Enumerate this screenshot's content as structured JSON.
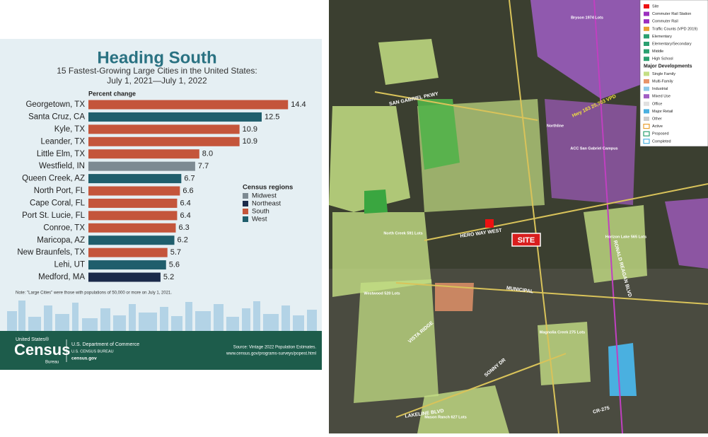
{
  "chart_data": {
    "type": "bar",
    "orientation": "horizontal",
    "title": "Heading South",
    "subtitle": [
      "15 Fastest-Growing Large Cities in the United States:",
      "July 1, 2021—July 1, 2022"
    ],
    "value_axis_label": "Percent change",
    "categories": [
      "Georgetown, TX",
      "Santa Cruz, CA",
      "Kyle, TX",
      "Leander, TX",
      "Little Elm, TX",
      "Westfield, IN",
      "Queen Creek, AZ",
      "North Port, FL",
      "Cape Coral, FL",
      "Port St. Lucie, FL",
      "Conroe, TX",
      "Maricopa, AZ",
      "New Braunfels, TX",
      "Lehi, UT",
      "Medford, MA"
    ],
    "values": [
      14.4,
      12.5,
      10.9,
      10.9,
      8.0,
      7.7,
      6.7,
      6.6,
      6.4,
      6.4,
      6.3,
      6.2,
      5.7,
      5.6,
      5.2
    ],
    "value_labels": [
      "14.4",
      "12.5",
      "10.9",
      "10.9",
      "8.0",
      "7.7",
      "6.7",
      "6.6",
      "6.4",
      "6.4",
      "6.3",
      "6.2",
      "5.7",
      "5.6",
      "5.2"
    ],
    "regions": [
      "South",
      "West",
      "South",
      "South",
      "South",
      "Midwest",
      "West",
      "South",
      "South",
      "South",
      "South",
      "West",
      "South",
      "West",
      "Northeast"
    ],
    "xlim": [
      0,
      15
    ],
    "legend_title": "Census regions",
    "legend": [
      {
        "name": "Midwest",
        "color": "#7d8a92"
      },
      {
        "name": "Northeast",
        "color": "#1b2a4a"
      },
      {
        "name": "South",
        "color": "#c4553b"
      },
      {
        "name": "West",
        "color": "#1f5e6c"
      }
    ],
    "note": "Note: \"Large Cities\" were those with populations of 50,000 or more on July 1, 2021.",
    "footer": {
      "logo_top": "United States®",
      "logo": "Census",
      "logo_sub": "Bureau",
      "dept": "U.S. Department of Commerce",
      "bureau": "U.S. CENSUS BUREAU",
      "site": "census.gov",
      "source": "Source: Vintage 2022 Population Estimates.",
      "source_url": "www.census.gov/programs-surveys/popest.html"
    }
  },
  "map": {
    "site_label": "SITE",
    "labels": [
      "SAN GABRIEL PKWY",
      "HERO WAY WEST",
      "Hwy 183  25,703 VPD",
      "MUNICIPAL",
      "VISTA RIDGE",
      "LAKELINE BLVD",
      "CR-275",
      "SONNY DR",
      "RONALD REAGAN BLVD",
      "Bryson 1974 Lots",
      "North Creek 591 Lots",
      "Westwood 520 Lots",
      "Mason Ranch 627 Lots",
      "Magnolia Creek 275 Lots",
      "Horizon Lake 565 Lots",
      "Northline",
      "ACC San Gabriel Campus"
    ],
    "legend": [
      "Site",
      "Commuter Rail Station",
      "Commuter Rail",
      "Traffic Counts (VPD 2019)",
      "Elementary",
      "Elementary/Secondary",
      "Middle",
      "High School",
      "Major Developments",
      "Single Family",
      "Multi-Family",
      "Industrial",
      "Mixed Use",
      "Office",
      "Major Retail",
      "Other",
      "Active",
      "Proposed",
      "Completed"
    ]
  }
}
